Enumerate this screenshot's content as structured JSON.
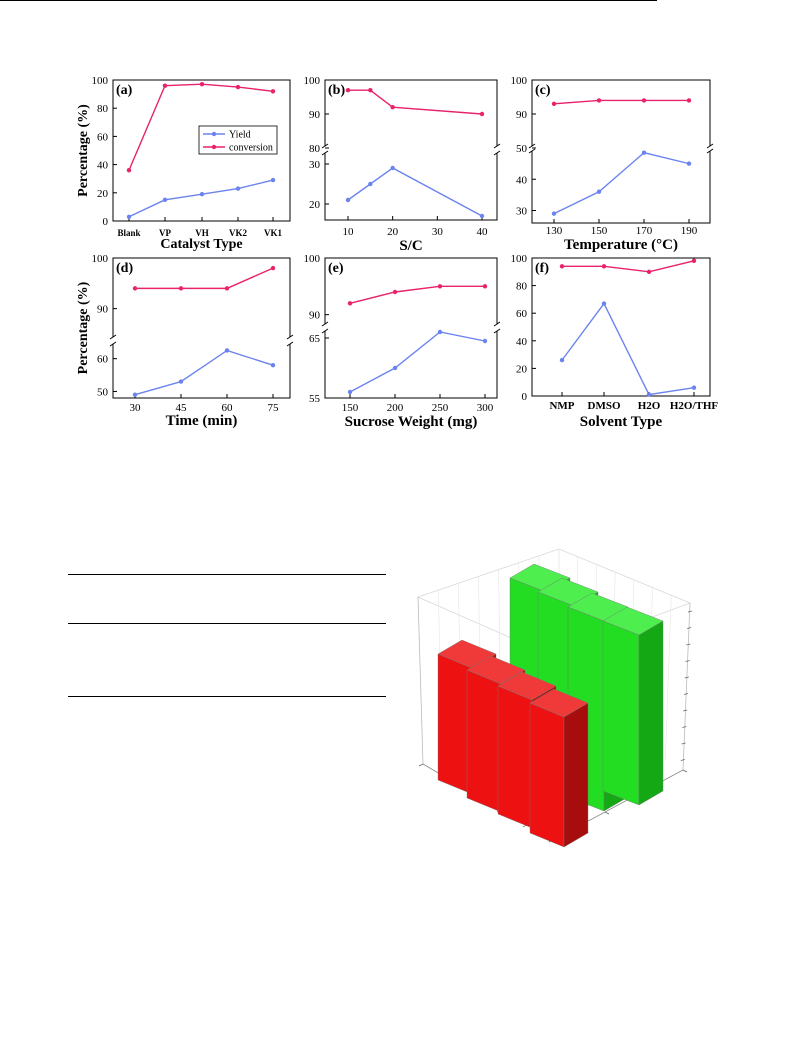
{
  "colors": {
    "yield": "#6b83ef",
    "conversion": "#e8226b",
    "bar_red": "#ee1111",
    "bar_green": "#22dd22"
  },
  "chart_data": [
    {
      "id": "a",
      "type": "line",
      "panel_label": "(a)",
      "xlabel": "Catalyst Type",
      "ylabel": "Percentage (%)",
      "x_categories": [
        "Blank",
        "VP",
        "VH",
        "VK2",
        "VK1"
      ],
      "ylim": [
        0,
        100
      ],
      "yticks": [
        0,
        20,
        40,
        60,
        80,
        100
      ],
      "legend": [
        "Yield",
        "conversion"
      ],
      "series": [
        {
          "name": "Yield",
          "values": [
            3,
            15,
            19,
            23,
            29
          ]
        },
        {
          "name": "conversion",
          "values": [
            36,
            96,
            97,
            95,
            92
          ]
        }
      ]
    },
    {
      "id": "b",
      "type": "line",
      "panel_label": "(b)",
      "xlabel": "S/C",
      "ylabel": "",
      "x": [
        10,
        15,
        20,
        40
      ],
      "xticks": [
        10,
        20,
        30,
        40
      ],
      "axis_break": true,
      "ylim_lower": [
        16,
        34
      ],
      "ylim_upper": [
        80,
        100
      ],
      "yticks_lower": [
        20,
        30
      ],
      "yticks_upper": [
        80,
        90,
        100
      ],
      "series": [
        {
          "name": "Yield",
          "values": [
            21,
            25,
            29,
            17
          ]
        },
        {
          "name": "conversion",
          "values": [
            97,
            97,
            92,
            90
          ]
        }
      ]
    },
    {
      "id": "c",
      "type": "line",
      "panel_label": "(c)",
      "xlabel": "Temperature (°C)",
      "ylabel": "",
      "x": [
        130,
        150,
        170,
        190
      ],
      "xticks": [
        130,
        150,
        170,
        190
      ],
      "axis_break": true,
      "ylim_lower": [
        26,
        50
      ],
      "ylim_upper": [
        80,
        100
      ],
      "yticks_lower": [
        30,
        40,
        50
      ],
      "yticks_upper": [
        90,
        100
      ],
      "series": [
        {
          "name": "Yield",
          "values": [
            29,
            36,
            48.5,
            45
          ]
        },
        {
          "name": "conversion",
          "values": [
            93,
            94,
            94,
            94
          ]
        }
      ]
    },
    {
      "id": "d",
      "type": "line",
      "panel_label": "(d)",
      "xlabel": "Time (min)",
      "ylabel": "Percentage (%)",
      "x": [
        30,
        45,
        60,
        75
      ],
      "xticks": [
        30,
        45,
        60,
        75
      ],
      "axis_break": true,
      "ylim_lower": [
        48,
        66
      ],
      "ylim_upper": [
        84,
        100
      ],
      "yticks_lower": [
        50,
        60
      ],
      "yticks_upper": [
        90,
        100
      ],
      "series": [
        {
          "name": "Yield",
          "values": [
            49,
            53,
            62.5,
            58
          ]
        },
        {
          "name": "conversion",
          "values": [
            94,
            94,
            94,
            98
          ]
        }
      ]
    },
    {
      "id": "e",
      "type": "line",
      "panel_label": "(e)",
      "xlabel": "Sucrose Weight (mg)",
      "ylabel": "",
      "x": [
        150,
        200,
        250,
        300
      ],
      "xticks": [
        150,
        200,
        250,
        300
      ],
      "axis_break": true,
      "ylim_lower": [
        55,
        67
      ],
      "ylim_upper": [
        88,
        100
      ],
      "yticks_lower": [
        55,
        65
      ],
      "yticks_upper": [
        90,
        100
      ],
      "series": [
        {
          "name": "Yield",
          "values": [
            56,
            60,
            66,
            64.5
          ]
        },
        {
          "name": "conversion",
          "values": [
            92,
            94,
            95,
            95
          ]
        }
      ]
    },
    {
      "id": "f",
      "type": "line",
      "panel_label": "(f)",
      "xlabel": "Solvent Type",
      "ylabel": "",
      "x_categories": [
        "NMP",
        "DMSO",
        "H2O",
        "H2O/THF"
      ],
      "ylim": [
        0,
        100
      ],
      "yticks": [
        0,
        20,
        40,
        60,
        80,
        100
      ],
      "series": [
        {
          "name": "Yield",
          "values": [
            26,
            67,
            1,
            6
          ]
        },
        {
          "name": "conversion",
          "values": [
            94,
            94,
            90,
            98
          ]
        }
      ]
    },
    {
      "id": "bar3d",
      "type": "bar",
      "series": [
        {
          "values": [
            null,
            null,
            null,
            null
          ]
        },
        {
          "values": [
            null,
            null,
            null,
            null
          ]
        }
      ]
    }
  ]
}
